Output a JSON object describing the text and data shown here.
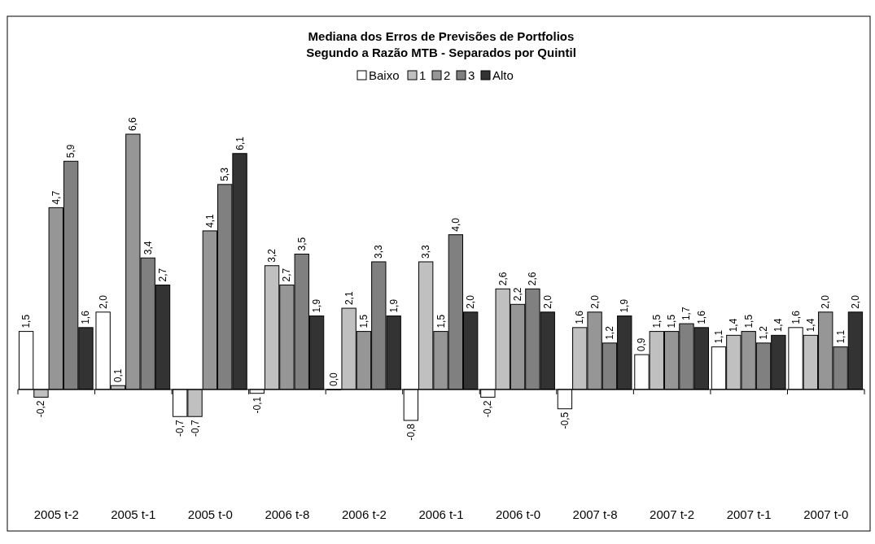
{
  "chart_data": {
    "type": "bar",
    "title": "Mediana dos Erros de Previsões de Portfolios\nSegundo a Razão MTB - Separados por Quintil",
    "categories": [
      "2005 t-2",
      "2005 t-1",
      "2005 t-0",
      "2006 t-8",
      "2006 t-2",
      "2006 t-1",
      "2006 t-0",
      "2007 t-8",
      "2007 t-2",
      "2007 t-1",
      "2007 t-0"
    ],
    "series": [
      {
        "name": "Baixo",
        "color": "#ffffff",
        "values": [
          1.5,
          2.0,
          -0.7,
          -0.1,
          0.0,
          -0.8,
          -0.2,
          -0.5,
          0.9,
          1.1,
          1.6
        ],
        "value_labels": [
          "1,5",
          "2,0",
          "-0,7",
          "-0,1",
          "0,0",
          "-0,8",
          "-0,2",
          "-0,5",
          "0,9",
          "1,1",
          "1,6"
        ]
      },
      {
        "name": "1",
        "color": "#c0c0c0",
        "values": [
          -0.2,
          0.1,
          -0.7,
          3.2,
          2.1,
          3.3,
          2.6,
          1.6,
          1.5,
          1.4,
          1.4
        ],
        "value_labels": [
          "-0,2",
          "0,1",
          "-0,7",
          "3,2",
          "2,1",
          "3,3",
          "2,6",
          "1,6",
          "1,5",
          "1,4",
          "1,4"
        ]
      },
      {
        "name": "2",
        "color": "#969696",
        "values": [
          4.7,
          6.6,
          4.1,
          2.7,
          1.5,
          1.5,
          2.2,
          2.0,
          1.5,
          1.5,
          2.0
        ],
        "value_labels": [
          "4,7",
          "6,6",
          "4,1",
          "2,7",
          "1,5",
          "1,5",
          "2,2",
          "2,0",
          "1,5",
          "1,5",
          "2,0"
        ]
      },
      {
        "name": "3",
        "color": "#808080",
        "values": [
          5.9,
          3.4,
          5.3,
          3.5,
          3.3,
          4.0,
          2.6,
          1.2,
          1.7,
          1.2,
          1.1
        ],
        "value_labels": [
          "5,9",
          "3,4",
          "5,3",
          "3,5",
          "3,3",
          "4,0",
          "2,6",
          "1,2",
          "1,7",
          "1,2",
          "1,1"
        ]
      },
      {
        "name": "Alto",
        "color": "#333333",
        "values": [
          1.6,
          2.7,
          6.1,
          1.9,
          1.9,
          2.0,
          2.0,
          1.9,
          1.6,
          1.4,
          2.0
        ],
        "value_labels": [
          "1,6",
          "2,7",
          "6,1",
          "1,9",
          "1,9",
          "2,0",
          "2,0",
          "1,9",
          "1,6",
          "1,4",
          "2,0"
        ]
      }
    ],
    "legend": "top"
  }
}
